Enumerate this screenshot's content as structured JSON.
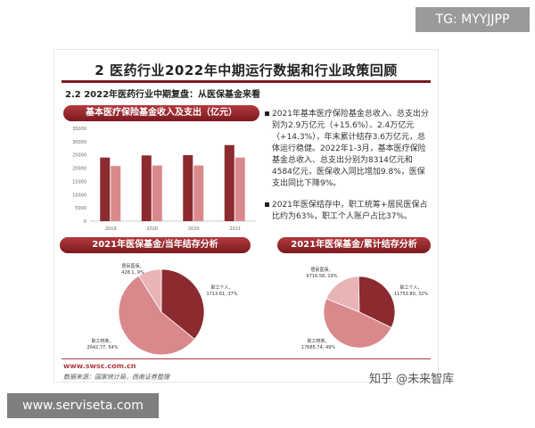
{
  "watermark_tg": "TG: MYYJJPP",
  "site_watermark": "www.serviseta.com",
  "zhihu_logo": "知乎 @未来智库",
  "slide": {
    "title": "2 医药行业2022年中期运行数据和行业政策回顾",
    "subtitle": "2.2 2022年医药行业中期复盘：从医保基金来看",
    "bar_banner": "基本医疗保险基金收入及支出（亿元）",
    "pie1_banner": "2021年医保基金/当年结存分析",
    "pie2_banner": "2021年医保基金/累计结存分析",
    "bullet1": "2021年基本医疗保险基金总收入、总支出分别为2.9万亿元（+15.6%）、2.4万亿元（+14.3%），年末累计结存3.6万亿元，总体运行稳健。2022年1-3月，基本医疗保险基金总收入、总支出分别为8314亿元和4584亿元，医保收入同比增加9.8%，医保支出同比下降9%。",
    "bullet2": "2021年医保结存中，职工统筹+居民医保占比约为63%，职工个人账户占比37%。",
    "footer_url": "www.swsc.com.cn",
    "footer_source": "数据来源：国家统计局，西南证券整理"
  },
  "colors": {
    "dark_red": "#8b2a2f",
    "light_red": "#d9898c",
    "pale_red": "#e8b4b6",
    "banner": "#7b1a1f"
  },
  "chart_data": [
    {
      "type": "bar",
      "title": "基本医疗保险基金收入及支出（亿元）",
      "categories": [
        "2019",
        "2020",
        "2020",
        "2021"
      ],
      "series": [
        {
          "values": [
            24000,
            24800,
            24900,
            28700
          ]
        },
        {
          "values": [
            20800,
            21000,
            21000,
            24000
          ]
        }
      ],
      "ylim": [
        0,
        35000
      ],
      "yticks": [
        "35000",
        "30000",
        "25000",
        "20000",
        "15000",
        "10000",
        "5000",
        "0"
      ]
    },
    {
      "type": "pie",
      "title": "2021年医保基金/当年结存分析",
      "slices": [
        {
          "label": "居民医保，",
          "value_label": "428.1, 9%",
          "value": 428.1
        },
        {
          "label": "职工个人，",
          "value_label": "1713.61, 37%",
          "value": 1713.61
        },
        {
          "label": "职工统筹，",
          "value_label": "2642.77, 54%",
          "value": 2642.77
        }
      ]
    },
    {
      "type": "pie",
      "title": "2021年医保基金/累计结存分析",
      "slices": [
        {
          "label": "居民医保，",
          "value_label": "6716.58, 19%",
          "value": 6716.58
        },
        {
          "label": "职工个人，",
          "value_label": "11753.80, 32%",
          "value": 11753.8
        },
        {
          "label": "职工统筹，",
          "value_label": "17685.74, 49%",
          "value": 17685.74
        }
      ]
    }
  ]
}
